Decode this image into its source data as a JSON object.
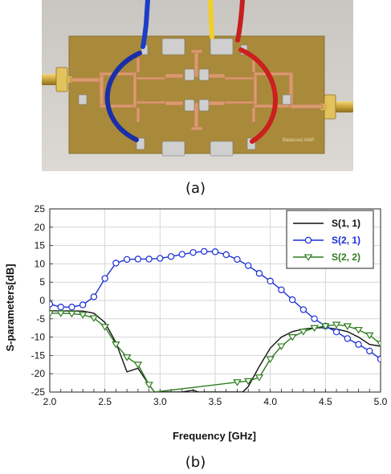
{
  "figure": {
    "caption_a": "(a)",
    "caption_b": "(b)",
    "photo_label": "Balanced AMP"
  },
  "colors": {
    "s11": "#111111",
    "s21": "#1a2fd6",
    "s22": "#2e7d1f",
    "board": "#a88a3a",
    "copper": "#d9996e"
  },
  "chart_data": {
    "type": "line",
    "xlabel": "Frequency [GHz]",
    "ylabel": "S-parameters[dB]",
    "xlim": [
      2.0,
      5.0
    ],
    "ylim": [
      -25,
      25
    ],
    "xticks": [
      "2.0",
      "2.5",
      "3.0",
      "3.5",
      "4.0",
      "4.5",
      "5.0"
    ],
    "yticks": [
      "25",
      "20",
      "15",
      "10",
      "5",
      "0",
      "-5",
      "-10",
      "-15",
      "-20",
      "-25"
    ],
    "grid": true,
    "legend_position": "top-right",
    "series": [
      {
        "name": "S(1, 1)",
        "marker": "none",
        "x": [
          2.0,
          2.3,
          2.4,
          2.5,
          2.6,
          2.7,
          2.8,
          2.9,
          2.95,
          3.2,
          3.3,
          3.35,
          3.75,
          3.8,
          3.9,
          4.0,
          4.1,
          4.2,
          4.3,
          4.4,
          4.5,
          4.6,
          4.7,
          4.8,
          4.9,
          5.0
        ],
        "y": [
          -2.8,
          -2.9,
          -3.5,
          -6.0,
          -11.5,
          -19.5,
          -18.5,
          -23.0,
          -25.0,
          -25.0,
          -24.5,
          -25.0,
          -25.0,
          -23.5,
          -18.0,
          -13.0,
          -10.0,
          -8.5,
          -7.8,
          -7.5,
          -7.4,
          -7.8,
          -8.5,
          -10.0,
          -12.0,
          -12.5
        ]
      },
      {
        "name": "S(2, 1)",
        "marker": "circle",
        "x": [
          2.0,
          2.1,
          2.2,
          2.3,
          2.4,
          2.5,
          2.6,
          2.7,
          2.8,
          2.9,
          3.0,
          3.1,
          3.2,
          3.3,
          3.4,
          3.5,
          3.6,
          3.7,
          3.8,
          3.9,
          4.0,
          4.1,
          4.2,
          4.3,
          4.4,
          4.5,
          4.6,
          4.7,
          4.8,
          4.9,
          5.0
        ],
        "y": [
          -1.0,
          -1.8,
          -1.8,
          -1.2,
          1.0,
          6.0,
          10.2,
          11.2,
          11.3,
          11.3,
          11.5,
          12.0,
          12.6,
          13.1,
          13.4,
          13.3,
          12.5,
          11.2,
          9.5,
          7.4,
          5.3,
          2.9,
          0.2,
          -2.5,
          -5.0,
          -7.0,
          -8.6,
          -10.4,
          -12.0,
          -13.8,
          -16.0
        ]
      },
      {
        "name": "S(2, 2)",
        "marker": "triangle-down",
        "x": [
          2.0,
          2.1,
          2.2,
          2.3,
          2.4,
          2.5,
          2.6,
          2.7,
          2.8,
          2.9,
          2.95,
          3.7,
          3.8,
          3.9,
          4.0,
          4.1,
          4.2,
          4.3,
          4.4,
          4.5,
          4.6,
          4.7,
          4.8,
          4.9,
          5.0
        ],
        "y": [
          -3.5,
          -3.5,
          -3.6,
          -3.9,
          -4.8,
          -7.2,
          -12.0,
          -15.5,
          -17.5,
          -23.0,
          -25.0,
          -22.3,
          -22.0,
          -21.0,
          -16.0,
          -12.5,
          -10.0,
          -8.5,
          -7.5,
          -7.0,
          -6.6,
          -7.0,
          -8.0,
          -9.5,
          -11.8
        ]
      }
    ]
  }
}
